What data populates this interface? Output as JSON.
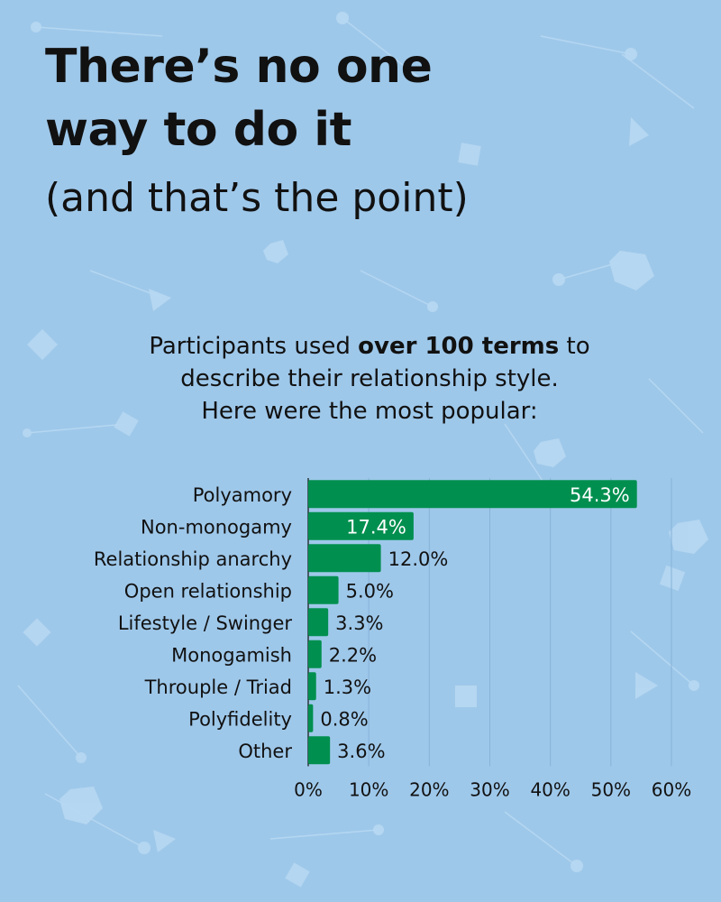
{
  "header": {
    "title_line1": "There’s no one",
    "title_line2": "way to do it",
    "subtitle": "(and that’s the point)"
  },
  "intro": {
    "line1_before": "Participants used ",
    "line1_bold": "over 100 terms",
    "line1_after": " to",
    "line2": "describe their relationship style.",
    "line3": "Here were the most popular:"
  },
  "colors": {
    "background": "#9ec8ea",
    "bar": "#008f4f",
    "text": "#111111",
    "bar_label_inside": "#ffffff"
  },
  "chart_data": {
    "type": "bar",
    "orientation": "horizontal",
    "categories": [
      "Polyamory",
      "Non-monogamy",
      "Relationship anarchy",
      "Open relationship",
      "Lifestyle / Swinger",
      "Monogamish",
      "Throuple / Triad",
      "Polyfidelity",
      "Other"
    ],
    "values": [
      54.3,
      17.4,
      12.0,
      5.0,
      3.3,
      2.2,
      1.3,
      0.8,
      3.6
    ],
    "value_labels": [
      "54.3%",
      "17.4%",
      "12.0%",
      "5.0%",
      "3.3%",
      "2.2%",
      "1.3%",
      "0.8%",
      "3.6%"
    ],
    "xlim": [
      0,
      60
    ],
    "xticks": [
      0,
      10,
      20,
      30,
      40,
      50,
      60
    ],
    "xtick_labels": [
      "0%",
      "10%",
      "20%",
      "30%",
      "40%",
      "50%",
      "60%"
    ],
    "grid": true,
    "title": "",
    "xlabel": "",
    "ylabel": ""
  }
}
